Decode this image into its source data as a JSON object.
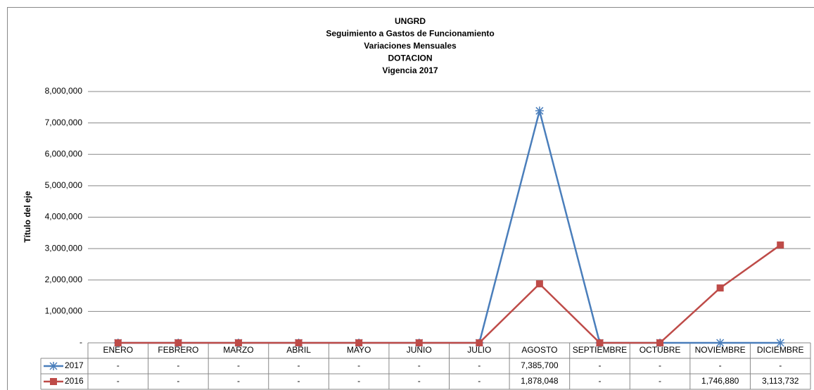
{
  "chart_data": {
    "type": "line",
    "title": [
      "UNGRD",
      "Seguimiento a Gastos de Funcionamiento",
      "Variaciones Mensuales",
      "DOTACION",
      "Vigencia 2017"
    ],
    "y_label": "Título del eje",
    "categories": [
      "ENERO",
      "FEBRERO",
      "MARZO",
      "ABRIL",
      "MAYO",
      "JUNIO",
      "JULIO",
      "AGOSTO",
      "SEPTIEMBRE",
      "OCTUBRE",
      "NOVIEMBRE",
      "DICIEMBRE"
    ],
    "series": [
      {
        "name": "2017",
        "color": "#4a7ebb",
        "marker": "star",
        "values": [
          0,
          0,
          0,
          0,
          0,
          0,
          0,
          7385700,
          0,
          0,
          0,
          0
        ],
        "value_labels": [
          "-",
          "-",
          "-",
          "-",
          "-",
          "-",
          "-",
          "7,385,700",
          "-",
          "-",
          "-",
          "-"
        ]
      },
      {
        "name": "2016",
        "color": "#be4b48",
        "marker": "square",
        "values": [
          0,
          0,
          0,
          0,
          0,
          0,
          0,
          1878048,
          0,
          0,
          1746880,
          3113732
        ],
        "value_labels": [
          "-",
          "-",
          "-",
          "-",
          "-",
          "-",
          "-",
          "1,878,048",
          "-",
          "-",
          "1,746,880",
          "3,113,732"
        ]
      }
    ],
    "ylim": [
      0,
      8000000
    ],
    "yticks": [
      {
        "value": 0,
        "label": "-"
      },
      {
        "value": 1000000,
        "label": "1,000,000"
      },
      {
        "value": 2000000,
        "label": "2,000,000"
      },
      {
        "value": 3000000,
        "label": "3,000,000"
      },
      {
        "value": 4000000,
        "label": "4,000,000"
      },
      {
        "value": 5000000,
        "label": "5,000,000"
      },
      {
        "value": 6000000,
        "label": "6,000,000"
      },
      {
        "value": 7000000,
        "label": "7,000,000"
      },
      {
        "value": 8000000,
        "label": "8,000,000"
      }
    ],
    "grid": true,
    "data_table": true
  }
}
